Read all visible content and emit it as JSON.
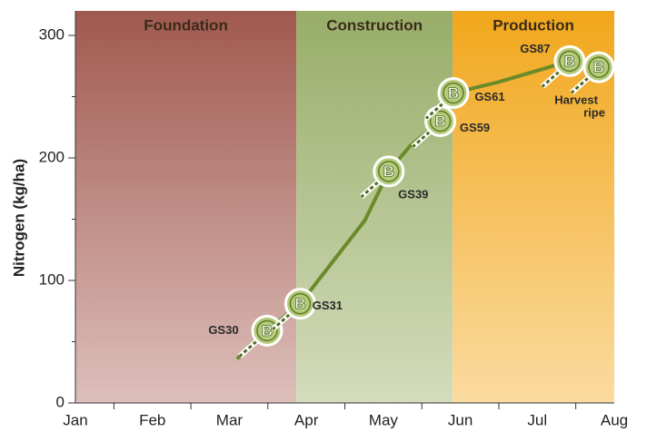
{
  "chart_data": {
    "type": "line",
    "ylabel": "Nitrogen (kg/ha)",
    "xlim": [
      0,
      7
    ],
    "ylim": [
      0,
      320
    ],
    "xticks": [
      {
        "value": 0,
        "label": "Jan"
      },
      {
        "value": 1,
        "label": "Feb"
      },
      {
        "value": 2,
        "label": "Mar"
      },
      {
        "value": 3,
        "label": "Apr"
      },
      {
        "value": 4,
        "label": "May"
      },
      {
        "value": 5,
        "label": "Jun"
      },
      {
        "value": 6,
        "label": "Jul"
      },
      {
        "value": 7,
        "label": "Aug"
      }
    ],
    "yticks": [
      0,
      100,
      200,
      300
    ],
    "phases": [
      {
        "label": "Foundation",
        "start": 0,
        "end": 2.87,
        "color_top": "#a0594f",
        "color_bottom": "#ddbfba"
      },
      {
        "label": "Construction",
        "start": 2.87,
        "end": 4.9,
        "color_top": "#98ad68",
        "color_bottom": "#d3dcbc"
      },
      {
        "label": "Production",
        "start": 4.9,
        "end": 7,
        "color_top": "#f1a71c",
        "color_bottom": "#fbdba0"
      }
    ],
    "series": [
      {
        "color": "#6b8a2a",
        "x": [
          2.1,
          2.49,
          2.92,
          3.4,
          3.76,
          4.07,
          4.35,
          4.74,
          4.91,
          5.5,
          6.42,
          6.6
        ],
        "values": [
          36,
          59,
          81,
          120,
          149,
          189,
          210,
          230,
          253,
          262,
          279,
          283
        ]
      }
    ],
    "marker_text": "B",
    "stages": [
      {
        "label": "GS30",
        "x": 2.49,
        "y": 59
      },
      {
        "label": "GS31",
        "x": 2.92,
        "y": 81
      },
      {
        "label": "GS39",
        "x": 4.07,
        "y": 189
      },
      {
        "label": "GS59",
        "x": 4.74,
        "y": 230
      },
      {
        "label": "GS61",
        "x": 4.91,
        "y": 253
      },
      {
        "label": "GS87",
        "x": 6.42,
        "y": 279
      },
      {
        "label": [
          "Harvest",
          "ripe"
        ],
        "x": 6.8,
        "y": 274
      }
    ]
  }
}
